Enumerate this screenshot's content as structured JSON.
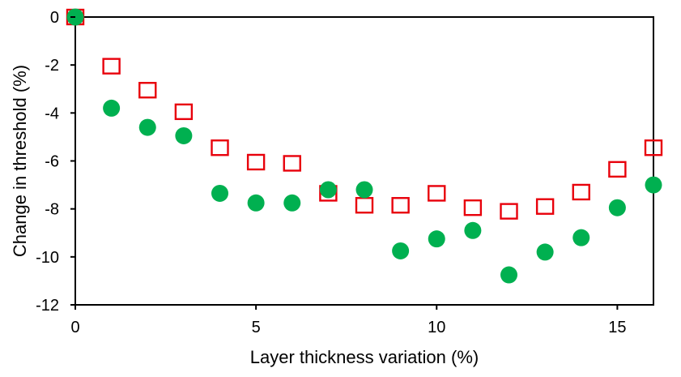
{
  "chart_data": {
    "type": "scatter",
    "xlabel": "Layer thickness variation (%)",
    "ylabel": "Change in threshold (%)",
    "xlim": [
      0,
      16
    ],
    "ylim": [
      -12,
      0
    ],
    "xticks": [
      0,
      5,
      10,
      15
    ],
    "yticks": [
      0,
      -2,
      -4,
      -6,
      -8,
      -10,
      -12
    ],
    "xtick_labels": [
      "0",
      "5",
      "10",
      "15"
    ],
    "ytick_labels": [
      "0",
      "-2",
      "-4",
      "-6",
      "-8",
      "-10",
      "-12"
    ],
    "grid": false,
    "legend": "none",
    "series": [
      {
        "marker": "open-square",
        "color": "#e8000b",
        "x": [
          0,
          1,
          2,
          3,
          4,
          5,
          6,
          7,
          8,
          9,
          10,
          11,
          12,
          13,
          14,
          15,
          16
        ],
        "y": [
          0,
          -2.05,
          -3.05,
          -3.95,
          -5.45,
          -6.05,
          -6.1,
          -7.35,
          -7.85,
          -7.85,
          -7.35,
          -7.95,
          -8.1,
          -7.9,
          -7.3,
          -6.35,
          -5.45
        ]
      },
      {
        "marker": "filled-circle",
        "color": "#00b050",
        "x": [
          0,
          1,
          2,
          3,
          4,
          5,
          6,
          7,
          8,
          9,
          10,
          11,
          12,
          13,
          14,
          15,
          16
        ],
        "y": [
          0,
          -3.8,
          -4.6,
          -4.95,
          -7.35,
          -7.75,
          -7.75,
          -7.2,
          -7.2,
          -9.75,
          -9.25,
          -8.9,
          -10.75,
          -9.8,
          -9.2,
          -7.95,
          -7.0
        ]
      }
    ]
  }
}
